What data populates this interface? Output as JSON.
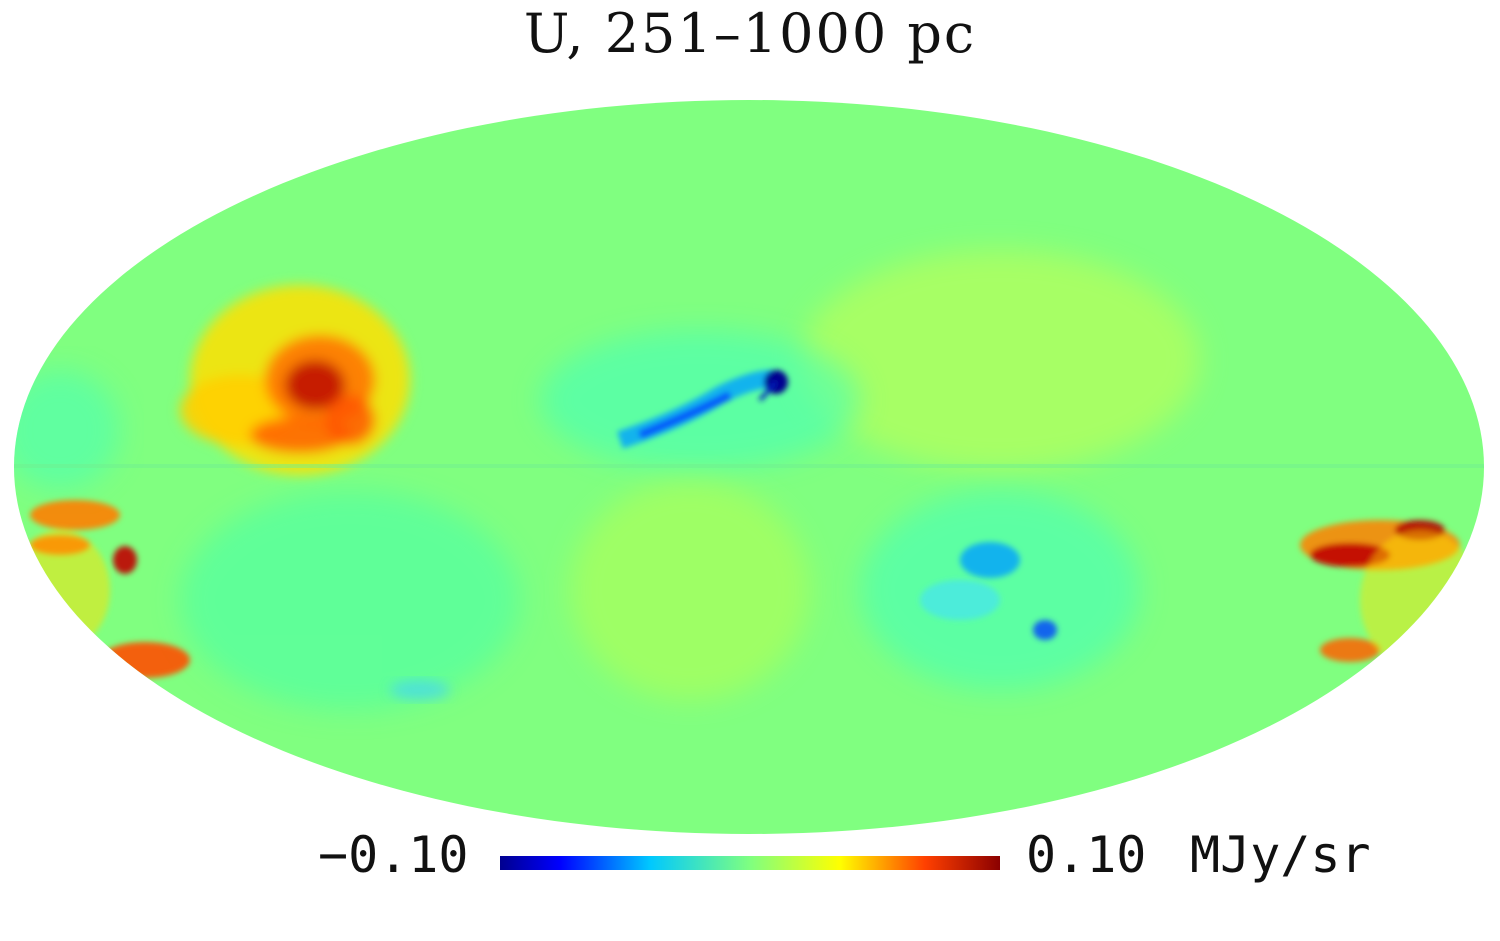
{
  "title": "U, 251–1000 pc",
  "colorbar": {
    "min_label": "−0.10",
    "max_label": "0.10",
    "unit": "MJy/sr",
    "min_value": -0.1,
    "max_value": 0.1,
    "colormap": [
      "#00008f",
      "#0030ff",
      "#00c8ff",
      "#7fff80",
      "#ffff00",
      "#ff6a00",
      "#8b0000"
    ]
  },
  "map": {
    "projection": "Mollweide",
    "background_color": "#80ff80"
  }
}
